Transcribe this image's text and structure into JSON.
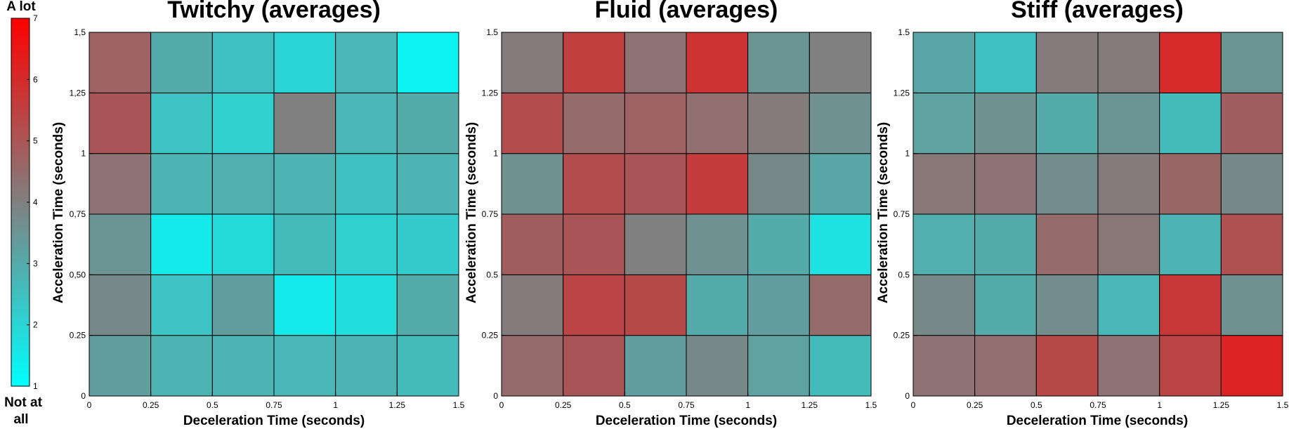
{
  "colorbar": {
    "top_label": "A lot",
    "bottom_label_line1": "Not at",
    "bottom_label_line2": "all",
    "min": 1,
    "max": 7,
    "ticks": [
      "1",
      "2",
      "3",
      "4",
      "5",
      "6",
      "7"
    ],
    "color_low": "#00ffff",
    "color_mid": "#808080",
    "color_high": "#ff0000"
  },
  "chart_data": [
    {
      "type": "heatmap",
      "title": "Twitchy (averages)",
      "xlabel": "Deceleration Time (seconds)",
      "ylabel": "Acceleration Time (seconds)",
      "xlim": [
        0,
        1.5
      ],
      "ylim": [
        0,
        1.5
      ],
      "xticks": [
        "0",
        "0.25",
        "0.5",
        "0.75",
        "1",
        "1.25",
        "1.5"
      ],
      "yticks": [
        "0",
        "0.25",
        "0,50",
        "0,75",
        "1",
        "1,25",
        "1,5"
      ],
      "rows_bottom_to_top": [
        [
          3.3,
          2.8,
          2.8,
          2.7,
          2.8,
          2.6
        ],
        [
          3.8,
          2.4,
          3.3,
          1.5,
          1.8,
          3.0
        ],
        [
          3.5,
          1.5,
          1.9,
          2.6,
          2.1,
          2.2
        ],
        [
          4.3,
          2.8,
          2.9,
          2.8,
          2.5,
          2.8
        ],
        [
          5.0,
          2.4,
          2.1,
          4.0,
          2.7,
          3.0
        ],
        [
          4.7,
          3.0,
          2.5,
          2.0,
          2.7,
          1.3
        ]
      ]
    },
    {
      "type": "heatmap",
      "title": "Fluid (averages)",
      "xlabel": "Deceleration Time (seconds)",
      "ylabel": "Acceleration Time (seconds)",
      "xlim": [
        0,
        1.5
      ],
      "ylim": [
        0,
        1.5
      ],
      "xticks": [
        "0",
        "0.25",
        "0.5",
        "0.75",
        "1",
        "1.25",
        "1.5"
      ],
      "yticks": [
        "0",
        "0.25",
        "0.5",
        "0.75",
        "1",
        "1.25",
        "1.5"
      ],
      "rows_bottom_to_top": [
        [
          4.5,
          5.0,
          3.3,
          3.8,
          3.2,
          2.6
        ],
        [
          4.1,
          5.4,
          5.3,
          3.0,
          3.3,
          4.5
        ],
        [
          4.8,
          5.0,
          4.0,
          3.6,
          3.0,
          1.7
        ],
        [
          3.6,
          5.2,
          5.0,
          5.6,
          3.8,
          3.1
        ],
        [
          5.2,
          4.5,
          4.7,
          4.4,
          4.1,
          3.6
        ],
        [
          4.1,
          5.5,
          4.3,
          5.8,
          3.5,
          4.0
        ]
      ]
    },
    {
      "type": "heatmap",
      "title": "Stiff (averages)",
      "xlabel": "Deceleration Time (seconds)",
      "ylabel": "Acceleration Time (seconds)",
      "xlim": [
        0,
        1.5
      ],
      "ylim": [
        0,
        1.5
      ],
      "xticks": [
        "0",
        "0.25",
        "0.5",
        "0.75",
        "1",
        "1.25",
        "1.5"
      ],
      "yticks": [
        "0",
        "0.25",
        "0.5",
        "0.75",
        "1",
        "1.25",
        "1.5"
      ],
      "rows_bottom_to_top": [
        [
          4.3,
          4.4,
          5.3,
          4.3,
          5.4,
          6.2
        ],
        [
          3.8,
          3.0,
          3.7,
          2.7,
          5.7,
          3.6
        ],
        [
          2.9,
          3.0,
          4.5,
          4.2,
          2.8,
          5.1
        ],
        [
          4.2,
          4.3,
          3.7,
          4.1,
          4.6,
          3.8
        ],
        [
          3.2,
          3.6,
          3.0,
          3.5,
          2.6,
          4.8
        ],
        [
          3.1,
          2.5,
          4.1,
          4.1,
          6.0,
          3.5
        ]
      ]
    }
  ]
}
